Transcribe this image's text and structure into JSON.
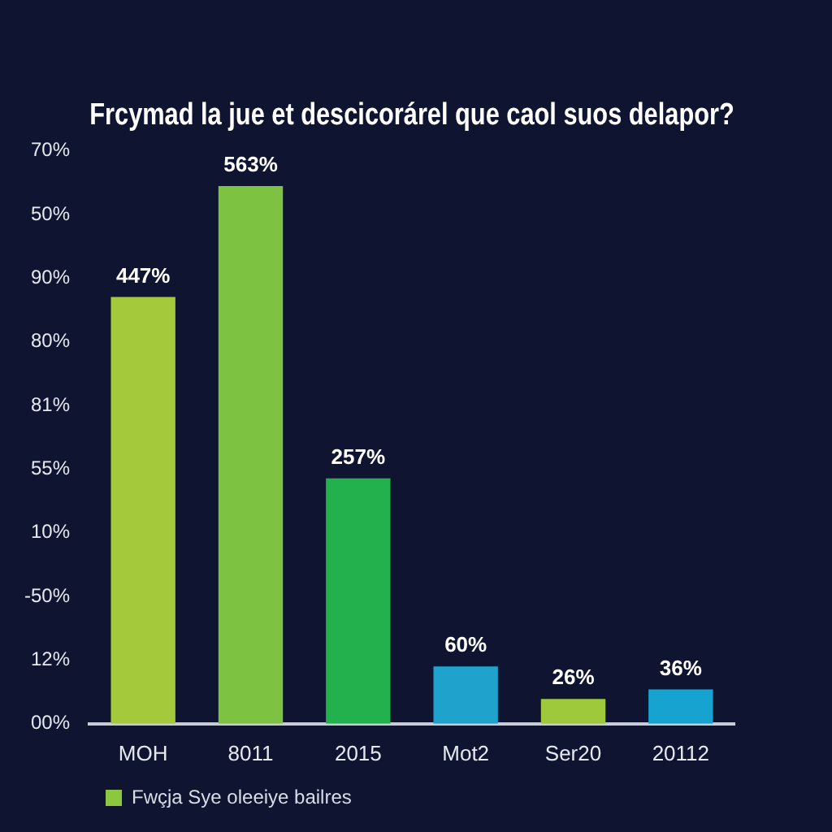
{
  "chart_data": {
    "type": "bar",
    "title": "Frcymad la jue et descicorárel que caol suos delapor?",
    "categories": [
      "MOH",
      "8011",
      "2015",
      "Mot2",
      "Ser20",
      "20112"
    ],
    "series": [
      {
        "name": "Fwçja Sye oleeiye bailres",
        "color": "#8dc63f",
        "colors": [
          "#a4c93a",
          "#7ec242",
          "#22b14c",
          "#1fa3cc",
          "#9dc93b",
          "#16a3cf"
        ],
        "values": [
          447,
          563,
          257,
          60,
          26,
          36
        ],
        "value_labels": [
          "447%",
          "563%",
          "257%",
          "60%",
          "26%",
          "36%"
        ]
      }
    ],
    "annotations": [
      "70%",
      "50%",
      "90%",
      "80%",
      "81%",
      "55%",
      "10%",
      "-50%",
      "12%",
      "00%"
    ],
    "legend": "bottom"
  }
}
